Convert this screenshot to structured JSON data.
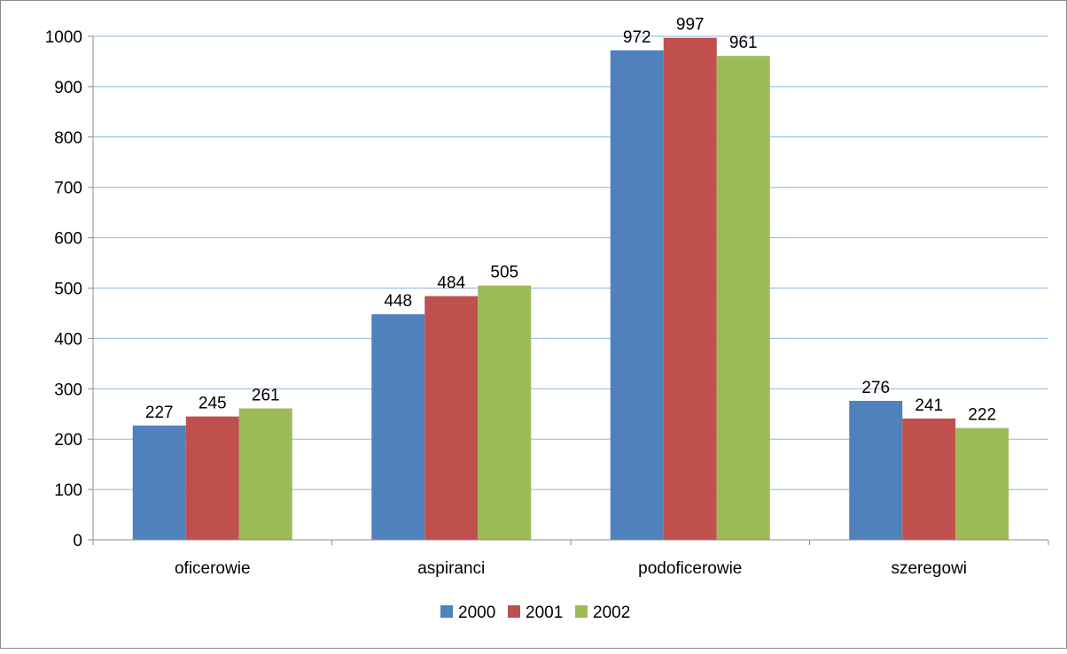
{
  "chart_data": {
    "type": "bar",
    "categories": [
      "oficerowie",
      "aspiranci",
      "podoficerowie",
      "szeregowi"
    ],
    "series": [
      {
        "name": "2000",
        "values": [
          227,
          448,
          972,
          276
        ],
        "color": "#4f81bd"
      },
      {
        "name": "2001",
        "values": [
          245,
          484,
          997,
          241
        ],
        "color": "#c0504d"
      },
      {
        "name": "2002",
        "values": [
          261,
          505,
          961,
          222
        ],
        "color": "#9bbb59"
      }
    ],
    "ylim": [
      0,
      1000
    ],
    "yticks": [
      0,
      100,
      200,
      300,
      400,
      500,
      600,
      700,
      800,
      900,
      1000
    ],
    "grid": true,
    "legend_position": "bottom",
    "title": "",
    "xlabel": "",
    "ylabel": ""
  }
}
